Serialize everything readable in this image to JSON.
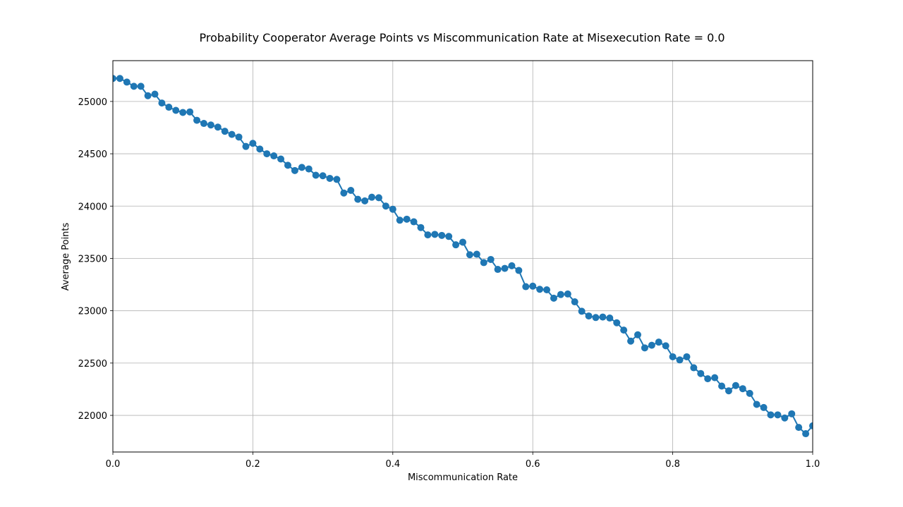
{
  "chart_data": {
    "type": "line",
    "title": "Probability Cooperator Average Points vs Miscommunication Rate at Misexecution Rate = 0.0",
    "xlabel": "Miscommunication Rate",
    "ylabel": "Average Points",
    "xlim": [
      0.0,
      1.0
    ],
    "ylim": [
      21650,
      25390
    ],
    "x_ticks": [
      0.0,
      0.2,
      0.4,
      0.6,
      0.8,
      1.0
    ],
    "x_tick_labels": [
      "0.0",
      "0.2",
      "0.4",
      "0.6",
      "0.8",
      "1.0"
    ],
    "y_ticks": [
      22000,
      22500,
      23000,
      23500,
      24000,
      24500,
      25000
    ],
    "y_tick_labels": [
      "22000",
      "22500",
      "23000",
      "23500",
      "24000",
      "24500",
      "25000"
    ],
    "grid": true,
    "marker": "circle",
    "color": "#1f77b4",
    "series": [
      {
        "x": [
          0.0,
          0.01,
          0.02,
          0.03,
          0.04,
          0.05,
          0.06,
          0.07,
          0.08,
          0.09,
          0.1,
          0.11,
          0.12,
          0.13,
          0.14,
          0.15,
          0.16,
          0.17,
          0.18,
          0.19,
          0.2,
          0.21,
          0.22,
          0.23,
          0.24,
          0.25,
          0.26,
          0.27,
          0.28,
          0.29,
          0.3,
          0.31,
          0.32,
          0.33,
          0.34,
          0.35,
          0.36,
          0.37,
          0.38,
          0.39,
          0.4,
          0.41,
          0.42,
          0.43,
          0.44,
          0.45,
          0.46,
          0.47,
          0.48,
          0.49,
          0.5,
          0.51,
          0.52,
          0.53,
          0.54,
          0.55,
          0.56,
          0.57,
          0.58,
          0.59,
          0.6,
          0.61,
          0.62,
          0.63,
          0.64,
          0.65,
          0.66,
          0.67,
          0.68,
          0.69,
          0.7,
          0.71,
          0.72,
          0.73,
          0.74,
          0.75,
          0.76,
          0.77,
          0.78,
          0.79,
          0.8,
          0.81,
          0.82,
          0.83,
          0.84,
          0.85,
          0.86,
          0.87,
          0.88,
          0.89,
          0.9,
          0.91,
          0.92,
          0.93,
          0.94,
          0.95,
          0.96,
          0.97,
          0.98,
          0.99,
          1.0
        ],
        "y": [
          25220,
          25220,
          25185,
          25145,
          25145,
          25055,
          25070,
          24985,
          24945,
          24915,
          24895,
          24900,
          24820,
          24790,
          24775,
          24755,
          24715,
          24685,
          24660,
          24570,
          24600,
          24545,
          24500,
          24480,
          24450,
          24390,
          24340,
          24370,
          24355,
          24295,
          24290,
          24265,
          24255,
          24125,
          24150,
          24065,
          24050,
          24085,
          24080,
          24000,
          23970,
          23865,
          23875,
          23850,
          23795,
          23725,
          23730,
          23720,
          23710,
          23630,
          23655,
          23535,
          23540,
          23460,
          23490,
          23395,
          23405,
          23430,
          23385,
          23230,
          23235,
          23205,
          23200,
          23120,
          23155,
          23160,
          23085,
          22995,
          22950,
          22935,
          22940,
          22930,
          22885,
          22815,
          22710,
          22770,
          22645,
          22670,
          22700,
          22665,
          22560,
          22530,
          22560,
          22455,
          22400,
          22350,
          22360,
          22280,
          22235,
          22285,
          22255,
          22210,
          22105,
          22075,
          22005,
          22005,
          21975,
          22015,
          21885,
          21825,
          21900
        ]
      }
    ]
  }
}
